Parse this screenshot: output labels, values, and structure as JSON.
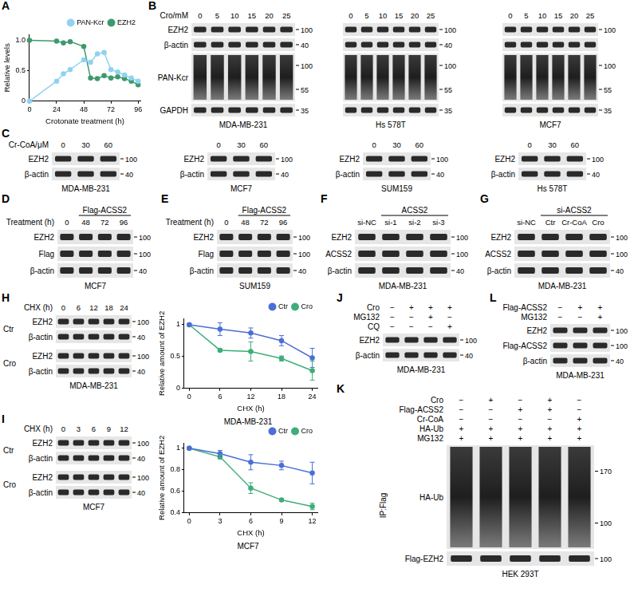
{
  "chart_data": [
    {
      "panel": "A",
      "type": "line",
      "x_label": "Crotonate treatment (h)",
      "y_label": "Relative levels",
      "x": [
        0,
        24,
        30,
        36,
        48,
        54,
        60,
        66,
        72,
        78,
        84,
        90,
        96
      ],
      "xlim": [
        0,
        98
      ],
      "xticks": [
        0,
        24,
        48,
        72,
        96
      ],
      "ylim": [
        0,
        1.1
      ],
      "yticks": [
        0,
        0.5,
        {
          "value": 1,
          "label": "1.0"
        }
      ],
      "grid": false,
      "legend": "top-right",
      "marker": "circle",
      "series": [
        {
          "name": "PAN-Kcr",
          "color": "#8fd3f0",
          "values": [
            0,
            0.33,
            0.45,
            0.52,
            0.68,
            0.64,
            0.78,
            0.8,
            0.52,
            0.48,
            0.43,
            0.38,
            0.33
          ]
        },
        {
          "name": "EZH2",
          "color": "#3d9a6e",
          "values": [
            1.0,
            0.99,
            0.96,
            0.98,
            0.9,
            0.38,
            0.37,
            0.42,
            0.38,
            0.4,
            0.37,
            0.33,
            0.27
          ]
        }
      ]
    },
    {
      "panel": "H",
      "type": "line",
      "x_label": "CHX (h)",
      "y_label": "Relative amount of EZH2",
      "x": [
        0,
        6,
        12,
        18,
        24
      ],
      "xlim": [
        -1,
        25
      ],
      "xticks": [
        0,
        6,
        12,
        18,
        24
      ],
      "ylim": [
        0,
        1.1
      ],
      "yticks": [
        0,
        0.5,
        1
      ],
      "grid": false,
      "legend": "top-right",
      "marker": "circle",
      "annotations": [
        "MDA-MB-231"
      ],
      "series": [
        {
          "name": "Ctr",
          "color": "#4a6fd6",
          "values": [
            1,
            0.93,
            0.87,
            0.75,
            0.48
          ],
          "errors": [
            0,
            0.1,
            0.08,
            0.08,
            0.15
          ]
        },
        {
          "name": "Cro",
          "color": "#3fad7a",
          "values": [
            1,
            0.6,
            0.58,
            0.47,
            0.28
          ],
          "errors": [
            0,
            0.02,
            0.15,
            0.04,
            0.15
          ]
        }
      ]
    },
    {
      "panel": "I",
      "type": "line",
      "x_label": "CHX (h)",
      "y_label": "Relative amount of EZH2",
      "x": [
        0,
        3,
        6,
        9,
        12
      ],
      "xlim": [
        -0.5,
        12.5
      ],
      "xticks": [
        0,
        3,
        6,
        9,
        12
      ],
      "ylim": [
        0.4,
        1.05
      ],
      "yticks": [
        0.4,
        0.6,
        0.8,
        1
      ],
      "grid": false,
      "legend": "top-right",
      "marker": "circle",
      "annotations": [
        "MCF7"
      ],
      "series": [
        {
          "name": "Ctr",
          "color": "#4a6fd6",
          "values": [
            1,
            0.95,
            0.87,
            0.84,
            0.77
          ],
          "errors": [
            0,
            0.03,
            0.07,
            0.04,
            0.1
          ]
        },
        {
          "name": "Cro",
          "color": "#3fad7a",
          "values": [
            1,
            0.92,
            0.63,
            0.52,
            0.46
          ],
          "errors": [
            0,
            0.02,
            0.05,
            0.01,
            0.03
          ]
        }
      ]
    }
  ],
  "blots": [
    {
      "panel": "B",
      "blots": [
        {
          "caption": "MDA-MB-231",
          "lanes": {
            "label": "Cro/mM",
            "values": [
              "0",
              "5",
              "10",
              "15",
              "20",
              "25"
            ]
          },
          "rows": [
            {
              "label": "EZH2",
              "markers": [
                100
              ]
            },
            {
              "label": "β-actin",
              "markers": [
                40
              ]
            },
            {
              "label": "PAN-Kcr",
              "markers": [
                100,
                55
              ]
            },
            {
              "label": "GAPDH",
              "markers": [
                35
              ]
            }
          ]
        },
        {
          "caption": "Hs 578T",
          "lanes": {
            "values": [
              "0",
              "5",
              "10",
              "15",
              "20",
              "25"
            ]
          },
          "rows": [
            {
              "markers": [
                100
              ]
            },
            {
              "markers": [
                40
              ]
            },
            {
              "markers": [
                100,
                55
              ]
            },
            {
              "markers": [
                35
              ]
            }
          ]
        },
        {
          "caption": "MCF7",
          "lanes": {
            "values": [
              "0",
              "5",
              "10",
              "15",
              "20",
              "25"
            ]
          },
          "rows": [
            {
              "markers": [
                100
              ]
            },
            {},
            {
              "markers": [
                100,
                55
              ]
            },
            {
              "markers": [
                35
              ]
            }
          ]
        }
      ]
    },
    {
      "panel": "C",
      "blots": [
        {
          "caption": "MDA-MB-231",
          "lanes": {
            "label": "Cr-CoA/μM",
            "values": [
              "0",
              "30",
              "60"
            ]
          },
          "rows": [
            {
              "label": "EZH2",
              "markers": [
                100
              ]
            },
            {
              "label": "β-actin",
              "markers": [
                40
              ]
            }
          ]
        },
        {
          "caption": "MCF7",
          "lanes": {
            "values": [
              "0",
              "30",
              "60"
            ]
          },
          "rows": [
            {
              "label": "EZH2",
              "markers": [
                100
              ]
            },
            {
              "label": "β-actin",
              "markers": [
                40
              ]
            }
          ]
        },
        {
          "caption": "SUM159",
          "lanes": {
            "values": [
              "0",
              "30",
              "60"
            ]
          },
          "rows": [
            {
              "label": "EZH2",
              "markers": [
                100
              ]
            },
            {
              "label": "β-actin",
              "markers": [
                40
              ]
            }
          ]
        },
        {
          "caption": "Hs 578T",
          "lanes": {
            "values": [
              "0",
              "30",
              "60"
            ]
          },
          "rows": [
            {
              "label": "EZH2",
              "markers": [
                100
              ]
            },
            {
              "label": "β-actin",
              "markers": [
                40
              ]
            }
          ]
        }
      ]
    },
    {
      "panel": "D",
      "blots": [
        {
          "caption": "MCF7",
          "group": {
            "label": "Flag-ACSS2",
            "values": [
              "48",
              "72",
              "96"
            ]
          },
          "lanes": {
            "label": "Treatment (h)",
            "values": [
              "0",
              "48",
              "72",
              "96"
            ]
          },
          "rows": [
            {
              "label": "EZH2",
              "markers": [
                100
              ]
            },
            {
              "label": "Flag",
              "markers": [
                100
              ]
            },
            {
              "label": "β-actin",
              "markers": [
                40
              ]
            }
          ]
        }
      ]
    },
    {
      "panel": "E",
      "blots": [
        {
          "caption": "SUM159",
          "group": {
            "label": "Flag-ACSS2",
            "values": [
              "48",
              "72",
              "96"
            ]
          },
          "lanes": {
            "label": "Treatment (h)",
            "values": [
              "0",
              "48",
              "72",
              "96"
            ]
          },
          "rows": [
            {
              "label": "EZH2",
              "markers": [
                100
              ]
            },
            {
              "label": "Flag",
              "markers": [
                100
              ]
            },
            {
              "label": "β-actin",
              "markers": [
                40
              ]
            }
          ]
        }
      ]
    },
    {
      "panel": "F",
      "blots": [
        {
          "caption": "MDA-MB-231",
          "group": {
            "label": "ACSS2",
            "values": [
              "si-1",
              "si-2",
              "si-3"
            ]
          },
          "lanes": {
            "values": [
              "si-NC",
              "si-1",
              "si-2",
              "si-3"
            ]
          },
          "rows": [
            {
              "label": "EZH2",
              "markers": [
                100
              ]
            },
            {
              "label": "ACSS2",
              "markers": [
                100
              ]
            },
            {
              "label": "β-actin",
              "markers": [
                40
              ]
            }
          ]
        }
      ]
    },
    {
      "panel": "G",
      "blots": [
        {
          "caption": "MDA-MB-231",
          "group": {
            "label": "si-ACSS2",
            "values": [
              "Ctr",
              "Cr-CoA",
              "Cro"
            ]
          },
          "lanes": {
            "values": [
              "si-NC",
              "Ctr",
              "Cr-CoA",
              "Cro"
            ]
          },
          "rows": [
            {
              "label": "EZH2",
              "markers": [
                100
              ]
            },
            {
              "label": "ACSS2",
              "markers": [
                100
              ]
            },
            {
              "label": "β-actin",
              "markers": [
                40
              ]
            }
          ]
        }
      ]
    },
    {
      "panel": "H",
      "blots": [
        {
          "caption": "MDA-MB-231",
          "lanes": {
            "label": "CHX (h)",
            "values": [
              "0",
              "6",
              "12",
              "18",
              "24"
            ]
          },
          "groups": [
            {
              "label": "Ctr",
              "rows": [
                {
                  "label": "EZH2",
                  "markers": [
                    100
                  ]
                },
                {
                  "label": "β-actin",
                  "markers": [
                    40
                  ]
                }
              ]
            },
            {
              "label": "Cro",
              "rows": [
                {
                  "label": "EZH2",
                  "markers": [
                    100
                  ]
                },
                {
                  "label": "β-actin",
                  "markers": [
                    40
                  ]
                }
              ]
            }
          ]
        }
      ]
    },
    {
      "panel": "I",
      "blots": [
        {
          "caption": "MCF7",
          "lanes": {
            "label": "CHX (h)",
            "values": [
              "0",
              "3",
              "6",
              "9",
              "12"
            ]
          },
          "groups": [
            {
              "label": "Ctr",
              "rows": [
                {
                  "label": "EZH2",
                  "markers": [
                    100
                  ]
                },
                {
                  "label": "β-actin",
                  "markers": [
                    40
                  ]
                }
              ]
            },
            {
              "label": "Cro",
              "rows": [
                {
                  "label": "EZH2",
                  "markers": [
                    100
                  ]
                },
                {
                  "label": "β-actin",
                  "markers": [
                    40
                  ]
                }
              ]
            }
          ]
        }
      ]
    },
    {
      "panel": "J",
      "blots": [
        {
          "caption": "MDA-MB-231",
          "conditions": [
            {
              "label": "Cro",
              "signs": [
                "−",
                "+",
                "+",
                "+"
              ]
            },
            {
              "label": "MG132",
              "signs": [
                "−",
                "−",
                "+",
                "−"
              ]
            },
            {
              "label": "CQ",
              "signs": [
                "−",
                "−",
                "−",
                "+"
              ]
            }
          ],
          "rows": [
            {
              "label": "EZH2",
              "markers": [
                100
              ]
            },
            {
              "label": "β-actin",
              "markers": [
                40
              ]
            }
          ]
        }
      ]
    },
    {
      "panel": "K",
      "blots": [
        {
          "caption": "HEK 293T",
          "side_label": "IP:Flag",
          "conditions": [
            {
              "label": "Cro",
              "signs": [
                "−",
                "+",
                "−",
                "+",
                "−"
              ]
            },
            {
              "label": "Flag-ACSS2",
              "signs": [
                "−",
                "−",
                "+",
                "+",
                "−"
              ]
            },
            {
              "label": "Cr-CoA",
              "signs": [
                "−",
                "−",
                "−",
                "−",
                "+"
              ]
            },
            {
              "label": "HA-Ub",
              "signs": [
                "+",
                "+",
                "+",
                "+",
                "+"
              ]
            },
            {
              "label": "MG132",
              "signs": [
                "+",
                "+",
                "+",
                "+",
                "+"
              ]
            }
          ],
          "rows": [
            {
              "label": "HA-Ub",
              "markers": [
                170,
                100
              ]
            },
            {
              "label": "Flag-EZH2",
              "markers": [
                100
              ]
            }
          ]
        }
      ]
    },
    {
      "panel": "L",
      "blots": [
        {
          "caption": "MDA-MB-231",
          "conditions": [
            {
              "label": "Flag-ACSS2",
              "signs": [
                "−",
                "+",
                "+"
              ]
            },
            {
              "label": "MG132",
              "signs": [
                "−",
                "−",
                "+"
              ]
            }
          ],
          "rows": [
            {
              "label": "EZH2",
              "markers": [
                100
              ]
            },
            {
              "label": "Flag-ACSS2",
              "markers": [
                100
              ]
            },
            {
              "label": "β-actin",
              "markers": [
                40
              ]
            }
          ]
        }
      ]
    }
  ]
}
